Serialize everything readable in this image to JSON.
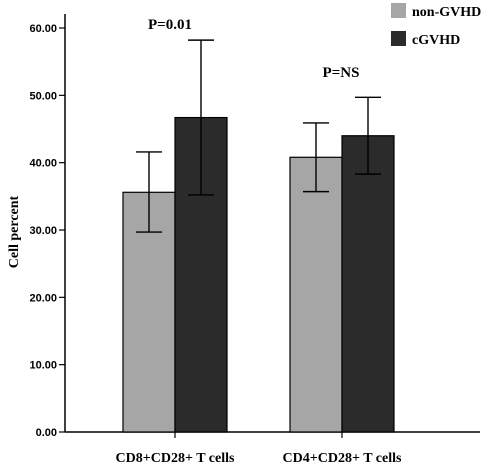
{
  "chart_data": {
    "type": "bar",
    "categories": [
      "CD8+CD28+ T cells",
      "CD4+CD28+ T cells"
    ],
    "series": [
      {
        "name": "non-GVHD",
        "values": [
          35.6,
          40.8
        ],
        "error_low": [
          29.7,
          35.7
        ],
        "error_high": [
          41.6,
          45.9
        ],
        "color": "#a6a6a6"
      },
      {
        "name": "cGVHD",
        "values": [
          46.7,
          44.0
        ],
        "error_low": [
          35.2,
          38.3
        ],
        "error_high": [
          58.2,
          49.7
        ],
        "color": "#2b2b2b"
      }
    ],
    "ylabel": "Cell percent",
    "xlabel": "",
    "ylim": [
      0,
      65
    ],
    "yticks": [
      "0.00",
      "10.00",
      "20.00",
      "30.00",
      "40.00",
      "50.00",
      "60.00"
    ],
    "annotations": [
      "P=0.01",
      "P=NS"
    ],
    "legend_position": "top-right",
    "grid": false
  }
}
